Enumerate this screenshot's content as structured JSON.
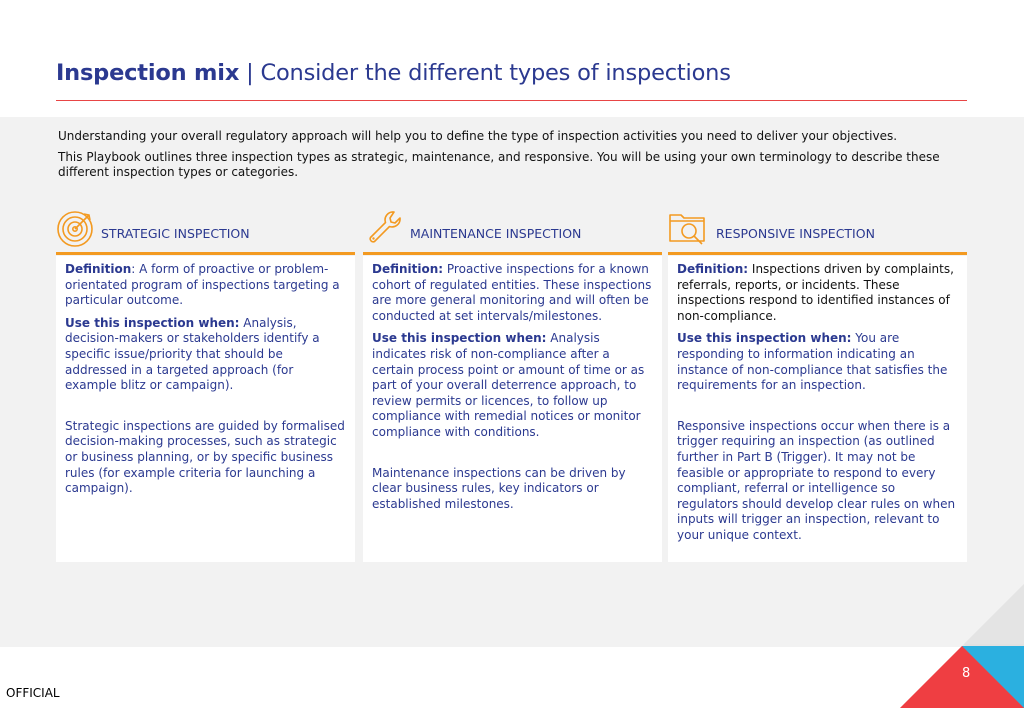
{
  "header": {
    "title_strong": "Inspection mix",
    "title_sep": " | ",
    "title_rest": "Consider the different types of inspections"
  },
  "intro": {
    "p1": "Understanding your overall regulatory approach will help you to define the type of inspection activities you need to deliver your objectives.",
    "p2": "This Playbook outlines three inspection types as strategic, maintenance, and responsive. You will be using your own terminology to describe these different inspection types or categories."
  },
  "cards": [
    {
      "icon": "target-icon",
      "label": "STRATEGIC INSPECTION",
      "def_label": "Definition",
      "def_text": ": A form of proactive or problem-orientated program of inspections targeting a particular outcome.",
      "use_label": "Use this inspection when:",
      "use_text": " Analysis, decision-makers or stakeholders identify a specific issue/priority that should be addressed in a targeted approach (for example blitz or campaign).",
      "note": "Strategic inspections are guided by formalised decision-making processes, such as strategic or business planning, or by specific business rules (for example criteria for launching a campaign)."
    },
    {
      "icon": "wrench-icon",
      "label": "MAINTENANCE INSPECTION",
      "def_label": "Definition:",
      "def_text": " Proactive inspections for a known cohort of regulated entities. These inspections are more general monitoring and will often be conducted at set intervals/milestones.",
      "use_label": "Use this inspection when:",
      "use_text": " Analysis indicates risk of non-compliance after a certain process point or amount of time or as part of your overall deterrence approach, to review permits or licences, to follow up compliance with remedial notices or monitor compliance with conditions.",
      "note": "Maintenance inspections can be driven by clear business rules, key indicators or established milestones."
    },
    {
      "icon": "folder-search-icon",
      "label": "RESPONSIVE INSPECTION",
      "def_label": "Definition:",
      "def_text": " Inspections driven by complaints, referrals, reports, or incidents. These inspections respond to identified instances of non-compliance.",
      "use_label": "Use this inspection when:",
      "use_text": " You are responding to information indicating an instance of non-compliance that satisfies the requirements for an inspection.",
      "note": "Responsive inspections occur when there is a trigger requiring an inspection (as outlined further in Part B (Trigger). It may not be feasible or appropriate to respond to every compliant, referral or intelligence so regulators should develop clear rules on when inputs will trigger an inspection, relevant to your unique context."
    }
  ],
  "footer": {
    "page_number": "8",
    "classification": "OFFICIAL"
  },
  "colors": {
    "brand_blue": "#2b3990",
    "accent_red": "#e84545",
    "accent_orange": "#f39a21",
    "accent_cyan": "#2bb0e0"
  }
}
